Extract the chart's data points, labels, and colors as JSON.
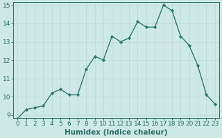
{
  "x": [
    0,
    1,
    2,
    3,
    4,
    5,
    6,
    7,
    8,
    9,
    10,
    11,
    12,
    13,
    14,
    15,
    16,
    17,
    18,
    19,
    20,
    21,
    22,
    23
  ],
  "y": [
    8.8,
    9.3,
    9.4,
    9.5,
    10.2,
    10.4,
    10.1,
    10.1,
    11.5,
    12.2,
    12.0,
    13.3,
    13.0,
    13.2,
    14.1,
    13.8,
    13.8,
    15.0,
    14.7,
    13.3,
    12.8,
    11.7,
    10.1,
    9.6
  ],
  "line_color": "#2d7a6e",
  "marker": "D",
  "marker_size": 2.2,
  "bg_color": "#cce9e5",
  "grid_color": "#c0dbd8",
  "xlabel": "Humidex (Indice chaleur)",
  "ylim": [
    9,
    15
  ],
  "xlim": [
    -0.5,
    23.5
  ],
  "yticks": [
    9,
    10,
    11,
    12,
    13,
    14,
    15
  ],
  "xticks": [
    0,
    1,
    2,
    3,
    4,
    5,
    6,
    7,
    8,
    9,
    10,
    11,
    12,
    13,
    14,
    15,
    16,
    17,
    18,
    19,
    20,
    21,
    22,
    23
  ],
  "xlabel_fontsize": 7.5,
  "tick_fontsize": 6.5,
  "axis_color": "#2d6e63",
  "linewidth": 1.0
}
